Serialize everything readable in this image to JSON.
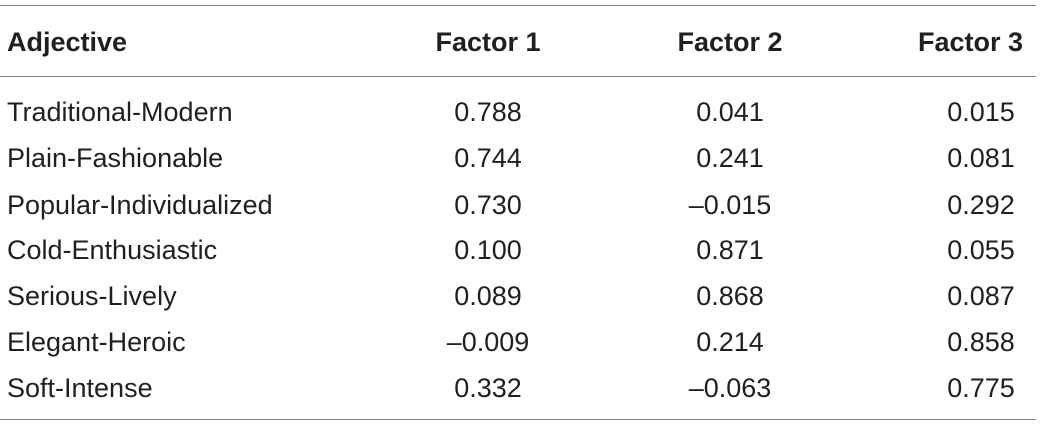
{
  "table": {
    "headers": {
      "adjective": "Adjective",
      "factor1": "Factor 1",
      "factor2": "Factor 2",
      "factor3": "Factor 3"
    },
    "rows": [
      {
        "adjective": "Traditional-Modern",
        "factor1": "0.788",
        "factor2": "0.041",
        "factor3": "0.015"
      },
      {
        "adjective": "Plain-Fashionable",
        "factor1": "0.744",
        "factor2": "0.241",
        "factor3": "0.081"
      },
      {
        "adjective": "Popular-Individualized",
        "factor1": "0.730",
        "factor2": "–0.015",
        "factor3": "0.292"
      },
      {
        "adjective": "Cold-Enthusiastic",
        "factor1": "0.100",
        "factor2": "0.871",
        "factor3": "0.055"
      },
      {
        "adjective": "Serious-Lively",
        "factor1": "0.089",
        "factor2": "0.868",
        "factor3": "0.087"
      },
      {
        "adjective": "Elegant-Heroic",
        "factor1": "–0.009",
        "factor2": "0.214",
        "factor3": "0.858"
      },
      {
        "adjective": "Soft-Intense",
        "factor1": "0.332",
        "factor2": "–0.063",
        "factor3": "0.775"
      }
    ]
  }
}
